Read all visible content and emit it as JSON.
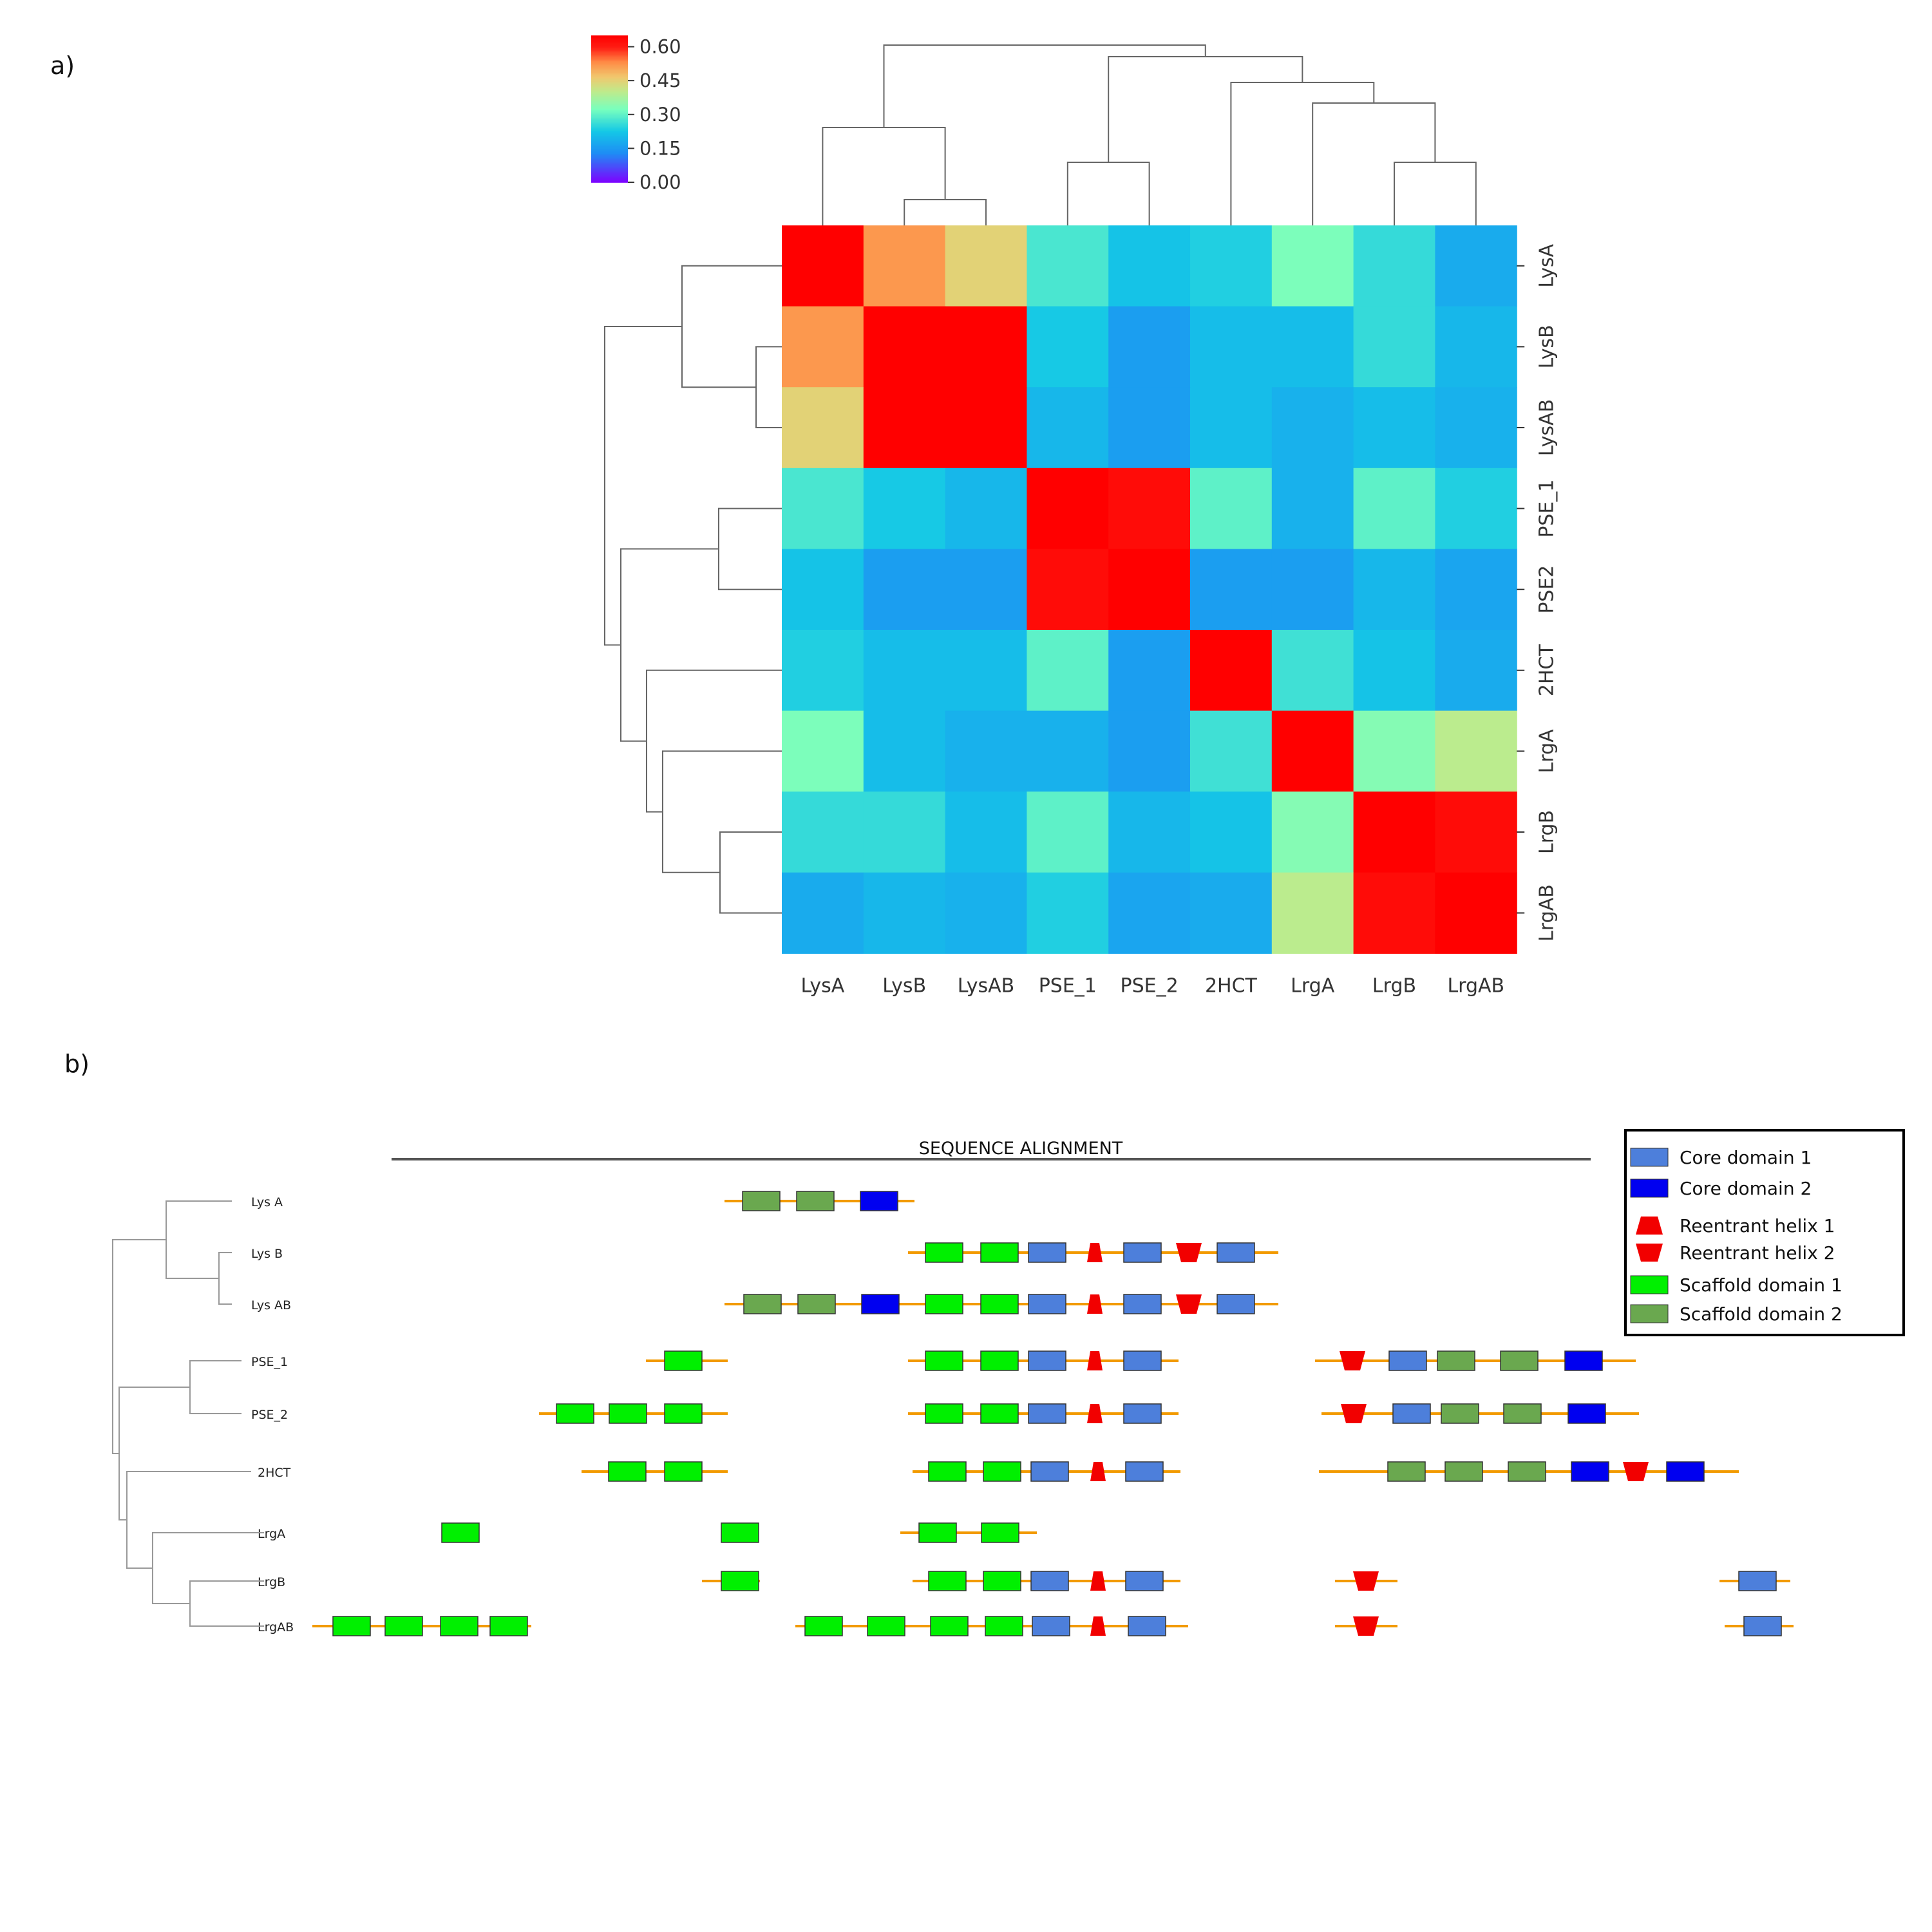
{
  "panels": {
    "a": "a)",
    "b": "b)"
  },
  "chart_data": [
    {
      "type": "heatmap",
      "panel": "a)",
      "title": "",
      "row_labels": [
        "LysA",
        "LysB",
        "LysAB",
        "PSE_1",
        "PSE2",
        "2HCT",
        "LrgA",
        "LrgB",
        "LrgAB"
      ],
      "col_labels": [
        "LysA",
        "LysB",
        "LysAB",
        "PSE_1",
        "PSE_2",
        "2HCT",
        "LrgA",
        "LrgB",
        "LrgAB"
      ],
      "values": [
        [
          0.65,
          0.52,
          0.45,
          0.28,
          0.22,
          0.24,
          0.33,
          0.26,
          0.18
        ],
        [
          0.52,
          0.65,
          0.65,
          0.23,
          0.16,
          0.21,
          0.21,
          0.26,
          0.2
        ],
        [
          0.45,
          0.65,
          0.65,
          0.2,
          0.16,
          0.21,
          0.19,
          0.21,
          0.19
        ],
        [
          0.28,
          0.23,
          0.2,
          0.65,
          0.63,
          0.3,
          0.19,
          0.3,
          0.24
        ],
        [
          0.22,
          0.16,
          0.16,
          0.63,
          0.65,
          0.16,
          0.16,
          0.2,
          0.17
        ],
        [
          0.24,
          0.21,
          0.21,
          0.3,
          0.16,
          0.65,
          0.27,
          0.22,
          0.18
        ],
        [
          0.33,
          0.21,
          0.19,
          0.19,
          0.16,
          0.27,
          0.65,
          0.34,
          0.4
        ],
        [
          0.26,
          0.26,
          0.21,
          0.3,
          0.2,
          0.22,
          0.34,
          0.65,
          0.63
        ],
        [
          0.18,
          0.2,
          0.19,
          0.24,
          0.17,
          0.18,
          0.4,
          0.63,
          0.65
        ]
      ],
      "colorbar": {
        "ticks": [
          0.6,
          0.45,
          0.3,
          0.15,
          0.0
        ],
        "tick_labels": [
          "0.60",
          "0.45",
          "0.30",
          "0.15",
          "0.00"
        ],
        "range": [
          0,
          0.65
        ],
        "colormap": "rainbow"
      },
      "dendrograms": {
        "column_tree": [
          [
            1,
            2
          ],
          [
            0,
            "1+2"
          ],
          [
            3,
            4
          ],
          [
            7,
            8
          ],
          [
            6,
            "7+8"
          ],
          [
            5,
            "6+7+8"
          ],
          [
            "3+4",
            "5+6+7+8"
          ],
          [
            "0+1+2",
            "3..8"
          ]
        ],
        "row_tree": [
          [
            1,
            2
          ],
          [
            0,
            "1+2"
          ],
          [
            3,
            4
          ],
          [
            7,
            8
          ],
          [
            6,
            "7+8"
          ],
          [
            5,
            "6+7+8"
          ],
          [
            "3+4",
            "5+6+7+8"
          ],
          [
            "0+1+2",
            "3..8"
          ]
        ]
      }
    },
    {
      "type": "table",
      "panel": "b)",
      "title": "SEQUENCE ALIGNMENT",
      "legend": [
        {
          "key": "core1",
          "label": "Core domain 1",
          "color": "#4d7fdb",
          "shape": "rect"
        },
        {
          "key": "core2",
          "label": "Core domain 2",
          "color": "#0000f0",
          "shape": "rect"
        },
        {
          "key": "rh1",
          "label": "Reentrant helix 1",
          "color": "#f20000",
          "shape": "trap-up"
        },
        {
          "key": "rh2",
          "label": "Reentrant helix 2",
          "color": "#f20000",
          "shape": "trap-down"
        },
        {
          "key": "scaf1",
          "label": "Scaffold domain 1",
          "color": "#00f000",
          "shape": "rect"
        },
        {
          "key": "scaf2",
          "label": "Scaffold domain 2",
          "color": "#6aa84f",
          "shape": "rect"
        }
      ],
      "linker_color": "#f29a00",
      "tree_leaves": [
        "Lys A",
        "Lys B",
        "Lys AB",
        "PSE_1",
        "PSE_2",
        "2HCT",
        "LrgA",
        "LrgB",
        "LrgAB"
      ],
      "rows": [
        {
          "name": "Lys A",
          "segments": [
            {
              "from": 1125,
              "to": 1420,
              "domains": [
                [
                  "scaf2",
                  1153
                ],
                [
                  "scaf2",
                  1237
                ],
                [
                  "core2",
                  1336
                ]
              ]
            }
          ]
        },
        {
          "name": "Lys B",
          "segments": [
            {
              "from": 1410,
              "to": 1985,
              "domains": [
                [
                  "scaf1",
                  1437
                ],
                [
                  "scaf1",
                  1523
                ],
                [
                  "core1",
                  1597
                ],
                [
                  "rh1",
                  1680
                ],
                [
                  "core1",
                  1745
                ],
                [
                  "rh2",
                  1826
                ],
                [
                  "core1",
                  1890
                ]
              ]
            }
          ]
        },
        {
          "name": "Lys AB",
          "segments": [
            {
              "from": 1125,
              "to": 1985,
              "domains": [
                [
                  "scaf2",
                  1155
                ],
                [
                  "scaf2",
                  1239
                ],
                [
                  "core2",
                  1338
                ],
                [
                  "scaf1",
                  1437
                ],
                [
                  "scaf1",
                  1523
                ],
                [
                  "core1",
                  1597
                ],
                [
                  "rh1",
                  1680
                ],
                [
                  "core1",
                  1745
                ],
                [
                  "rh2",
                  1826
                ],
                [
                  "core1",
                  1890
                ]
              ]
            }
          ]
        },
        {
          "name": "PSE_1",
          "segments": [
            {
              "from": 1003,
              "to": 1130,
              "domains": [
                [
                  "scaf1",
                  1032
                ]
              ]
            },
            {
              "from": 1410,
              "to": 1830,
              "domains": [
                [
                  "scaf1",
                  1437
                ],
                [
                  "scaf1",
                  1523
                ],
                [
                  "core1",
                  1597
                ],
                [
                  "rh1",
                  1680
                ],
                [
                  "core1",
                  1745
                ]
              ]
            },
            {
              "from": 2042,
              "to": 2540,
              "domains": [
                [
                  "rh2",
                  2080
                ],
                [
                  "core1",
                  2157
                ],
                [
                  "scaf2",
                  2232
                ],
                [
                  "scaf2",
                  2330
                ],
                [
                  "core2",
                  2430
                ]
              ]
            }
          ]
        },
        {
          "name": "PSE_2",
          "segments": [
            {
              "from": 837,
              "to": 1130,
              "domains": [
                [
                  "scaf1",
                  864
                ],
                [
                  "scaf1",
                  946
                ],
                [
                  "scaf1",
                  1032
                ]
              ]
            },
            {
              "from": 1410,
              "to": 1830,
              "domains": [
                [
                  "scaf1",
                  1437
                ],
                [
                  "scaf1",
                  1523
                ],
                [
                  "core1",
                  1597
                ],
                [
                  "rh1",
                  1680
                ],
                [
                  "core1",
                  1745
                ]
              ]
            },
            {
              "from": 2052,
              "to": 2545,
              "domains": [
                [
                  "rh2",
                  2082
                ],
                [
                  "core1",
                  2163
                ],
                [
                  "scaf2",
                  2238
                ],
                [
                  "scaf2",
                  2335
                ],
                [
                  "core2",
                  2435
                ]
              ]
            }
          ]
        },
        {
          "name": "2HCT",
          "segments": [
            {
              "from": 903,
              "to": 1130,
              "domains": [
                [
                  "scaf1",
                  945
                ],
                [
                  "scaf1",
                  1032
                ]
              ]
            },
            {
              "from": 1417,
              "to": 1833,
              "domains": [
                [
                  "scaf1",
                  1442
                ],
                [
                  "scaf1",
                  1527
                ],
                [
                  "core1",
                  1601
                ],
                [
                  "rh1",
                  1685
                ],
                [
                  "core1",
                  1748
                ]
              ]
            },
            {
              "from": 2048,
              "to": 2700,
              "domains": [
                [
                  "scaf2",
                  2155
                ],
                [
                  "scaf2",
                  2244
                ],
                [
                  "scaf2",
                  2342
                ],
                [
                  "core2",
                  2440
                ],
                [
                  "rh2",
                  2520
                ],
                [
                  "core2",
                  2588
                ]
              ]
            }
          ]
        },
        {
          "name": "LrgA",
          "segments": [
            {
              "domains": [
                [
                  "scaf1",
                  686
                ]
              ]
            },
            {
              "domains": [
                [
                  "scaf1",
                  1120
                ]
              ]
            },
            {
              "from": 1398,
              "to": 1610,
              "domains": [
                [
                  "scaf1",
                  1427
                ],
                [
                  "scaf1",
                  1524
                ]
              ]
            }
          ]
        },
        {
          "name": "LrgB",
          "segments": [
            {
              "from": 1090,
              "to": 1180,
              "domains": [
                [
                  "scaf1",
                  1120
                ]
              ]
            },
            {
              "from": 1417,
              "to": 1833,
              "domains": [
                [
                  "scaf1",
                  1442
                ],
                [
                  "scaf1",
                  1527
                ],
                [
                  "core1",
                  1601
                ],
                [
                  "rh1",
                  1685
                ],
                [
                  "core1",
                  1748
                ]
              ]
            },
            {
              "from": 2073,
              "to": 2170,
              "domains": [
                [
                  "rh2",
                  2101
                ]
              ]
            },
            {
              "from": 2670,
              "to": 2780,
              "domains": [
                [
                  "core1",
                  2700
                ]
              ]
            }
          ]
        },
        {
          "name": "LrgAB",
          "segments": [
            {
              "from": 485,
              "to": 825,
              "domains": [
                [
                  "scaf1",
                  517
                ],
                [
                  "scaf1",
                  598
                ],
                [
                  "scaf1",
                  684
                ],
                [
                  "scaf1",
                  761
                ]
              ]
            },
            {
              "from": 1235,
              "to": 1845,
              "domains": [
                [
                  "scaf1",
                  1250
                ],
                [
                  "scaf1",
                  1347
                ],
                [
                  "scaf1",
                  1445
                ],
                [
                  "scaf1",
                  1530
                ],
                [
                  "core1",
                  1603
                ],
                [
                  "rh1",
                  1685
                ],
                [
                  "core1",
                  1752
                ]
              ]
            },
            {
              "from": 2073,
              "to": 2170,
              "domains": [
                [
                  "rh2",
                  2101
                ]
              ]
            },
            {
              "from": 2678,
              "to": 2785,
              "domains": [
                [
                  "core1",
                  2708
                ]
              ]
            }
          ]
        }
      ]
    }
  ]
}
